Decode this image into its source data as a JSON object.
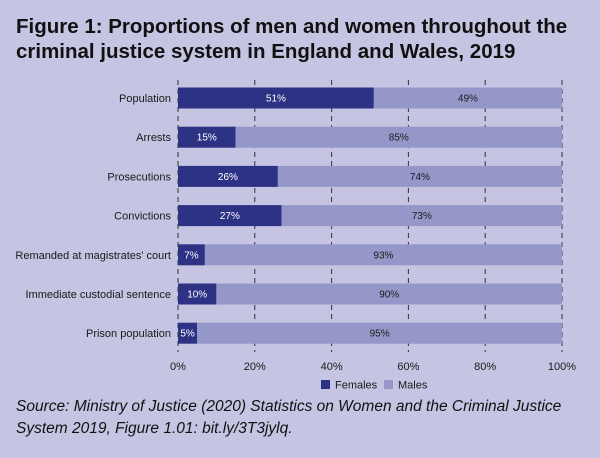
{
  "title": "Figure 1: Proportions of men and women throughout the criminal justice system in England and Wales, 2019",
  "source": "Source: Ministry of Justice (2020) Statistics on Women and the Criminal Justice System 2019, Figure 1.01: bit.ly/3T3jylq.",
  "colors": {
    "background": "#c5c4e2",
    "females": "#2e3285",
    "males": "#9597c9",
    "grid": "#333333"
  },
  "chart_data": {
    "type": "bar",
    "orientation": "horizontal",
    "stacked": true,
    "categories": [
      "Population",
      "Arrests",
      "Prosecutions",
      "Convictions",
      "Remanded at magistrates' court",
      "Immediate custodial sentence",
      "Prison population"
    ],
    "series": [
      {
        "name": "Females",
        "values": [
          51,
          15,
          26,
          27,
          7,
          10,
          5
        ],
        "labels": [
          "51%",
          "15%",
          "26%",
          "27%",
          "7%",
          "10%",
          "5%"
        ]
      },
      {
        "name": "Males",
        "values": [
          49,
          85,
          74,
          73,
          93,
          90,
          95
        ],
        "labels": [
          "49%",
          "85%",
          "74%",
          "73%",
          "93%",
          "90%",
          "95%"
        ]
      }
    ],
    "xlim": [
      0,
      100
    ],
    "xticks": [
      "0%",
      "20%",
      "40%",
      "60%",
      "80%",
      "100%"
    ],
    "grid": "vertical dashed",
    "legend_position": "bottom"
  }
}
